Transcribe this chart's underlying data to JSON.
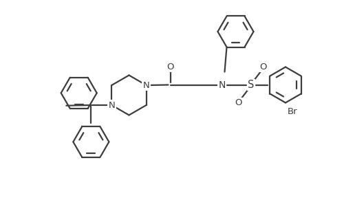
{
  "bg_color": "#ffffff",
  "line_color": "#3d3d3d",
  "line_width": 1.6,
  "figsize": [
    5.0,
    3.26
  ],
  "dpi": 100,
  "xlim": [
    0,
    10
  ],
  "ylim": [
    0,
    6.52
  ]
}
